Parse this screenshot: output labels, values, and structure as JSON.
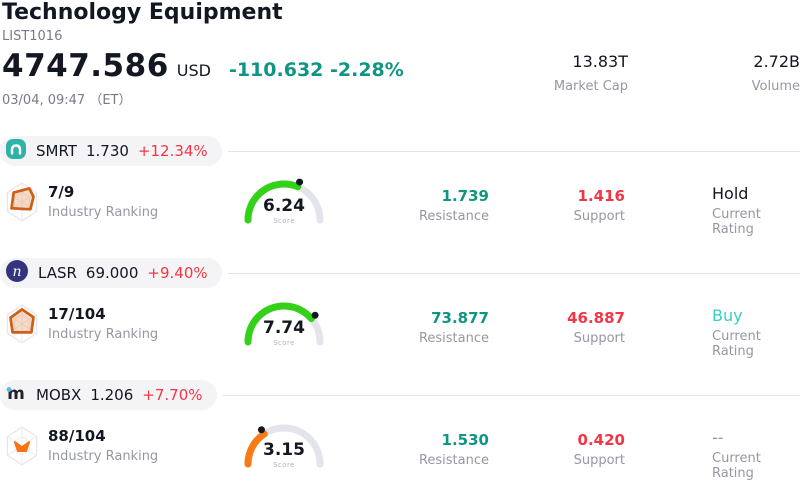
{
  "header": {
    "title": "Technology Equipment",
    "list_id": "LIST1016",
    "price": "4747.586",
    "currency": "USD",
    "change": "-110.632 -2.28%",
    "timestamp": "03/04, 09:47 （ET）",
    "market_cap": {
      "value": "13.83T",
      "label": "Market Cap"
    },
    "volume": {
      "value": "2.72B",
      "label": "Volume"
    }
  },
  "labels": {
    "industry_ranking": "Industry Ranking",
    "resistance": "Resistance",
    "support": "Support",
    "current_rating": "Current Rating",
    "score": "Score"
  },
  "colors": {
    "positive_teal": "#0f9682",
    "negative_red": "#f23645",
    "gauge_track": "#e4e4ec",
    "gauge_green": "#33d117",
    "gauge_orange": "#f97a16",
    "rating_buy": "#3bcec2",
    "rating_hold": "#131722",
    "rating_none": "#9598a1"
  },
  "rows": [
    {
      "symbol": "SMRT",
      "price": "1.730",
      "change": "+12.34%",
      "ranking": "7/9",
      "gauge": {
        "score": 6.24,
        "display": "6.24",
        "color": "#33d117"
      },
      "resistance": "1.739",
      "support": "1.416",
      "rating": "Hold",
      "rating_color": "#131722"
    },
    {
      "symbol": "LASR",
      "price": "69.000",
      "change": "+9.40%",
      "ranking": "17/104",
      "gauge": {
        "score": 7.74,
        "display": "7.74",
        "color": "#33d117"
      },
      "resistance": "73.877",
      "support": "46.887",
      "rating": "Buy",
      "rating_color": "#3bcec2"
    },
    {
      "symbol": "MOBX",
      "price": "1.206",
      "change": "+7.70%",
      "ranking": "88/104",
      "gauge": {
        "score": 3.15,
        "display": "3.15",
        "color": "#f97a16"
      },
      "resistance": "1.530",
      "support": "0.420",
      "rating": "--",
      "rating_color": "#9598a1"
    }
  ]
}
